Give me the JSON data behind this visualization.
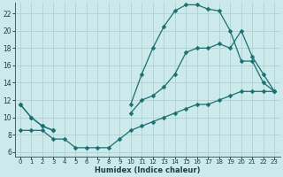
{
  "xlabel": "Humidex (Indice chaleur)",
  "bg_color": "#cce9ec",
  "grid_color": "#aacccc",
  "line_color": "#1a7070",
  "xlim": [
    -0.5,
    23.5
  ],
  "ylim": [
    5.5,
    23.2
  ],
  "xticks": [
    0,
    1,
    2,
    3,
    4,
    5,
    6,
    7,
    8,
    9,
    10,
    11,
    12,
    13,
    14,
    15,
    16,
    17,
    18,
    19,
    20,
    21,
    22,
    23
  ],
  "yticks": [
    6,
    8,
    10,
    12,
    14,
    16,
    18,
    20,
    22
  ],
  "curve1_x": [
    0,
    1,
    2,
    3,
    10,
    11,
    12,
    13,
    14,
    15,
    16,
    17,
    18,
    19,
    20,
    21,
    22,
    23
  ],
  "curve1_y": [
    11.5,
    10,
    9,
    8.5,
    11.5,
    15.0,
    18.0,
    20.5,
    22.3,
    23.0,
    23.0,
    22.5,
    22.3,
    20.0,
    16.5,
    16.5,
    14.0,
    13.0
  ],
  "curve2_x": [
    0,
    1,
    2,
    3,
    10,
    11,
    12,
    13,
    14,
    15,
    16,
    17,
    18,
    19,
    20,
    21,
    22,
    23
  ],
  "curve2_y": [
    11.5,
    10,
    9,
    8.5,
    10.5,
    12.0,
    12.5,
    13.5,
    15.0,
    17.5,
    18.0,
    18.0,
    18.5,
    18.0,
    20.0,
    17.0,
    15.0,
    13.0
  ],
  "curve3_x": [
    0,
    1,
    2,
    3,
    4,
    5,
    6,
    7,
    8,
    9,
    10,
    11,
    12,
    13,
    14,
    15,
    16,
    17,
    18,
    19,
    20,
    21,
    22,
    23
  ],
  "curve3_y": [
    8.5,
    8.5,
    8.5,
    7.5,
    7.5,
    6.5,
    6.5,
    6.5,
    6.5,
    7.5,
    8.5,
    9.0,
    9.5,
    10.0,
    10.5,
    11.0,
    11.5,
    11.5,
    12.0,
    12.5,
    13.0,
    13.0,
    13.0,
    13.0
  ]
}
